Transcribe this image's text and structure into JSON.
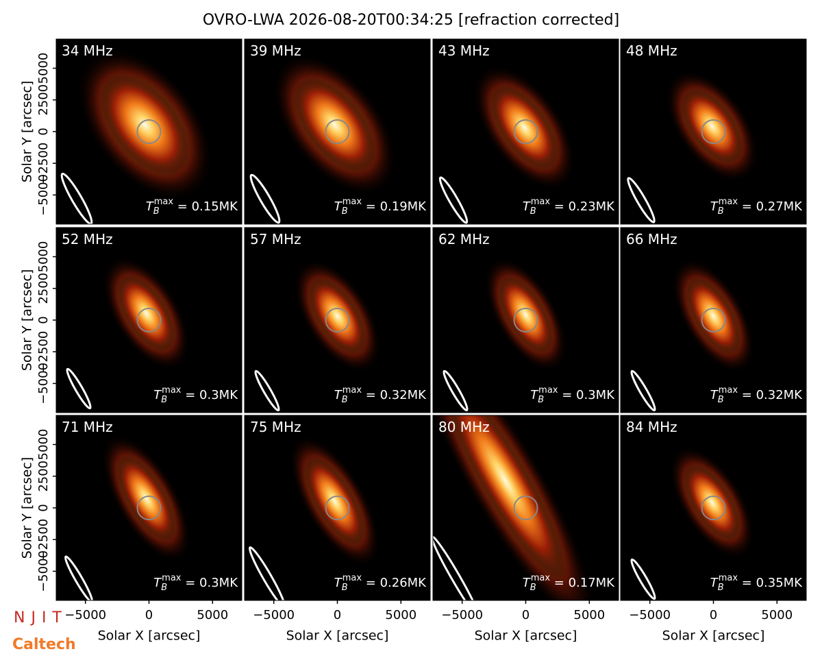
{
  "chart_data": {
    "type": "image-grid",
    "title": "OVRO-LWA 2026-08-20T00:34:25 [refraction corrected]",
    "xlabel": "Solar X [arcsec]",
    "ylabel": "Solar Y [arcsec]",
    "xlim": [
      -7300,
      7300
    ],
    "ylim": [
      -7300,
      7300
    ],
    "xticks": [
      {
        "value": -5000,
        "label": "−5000"
      },
      0,
      5000
    ],
    "yticks": [
      {
        "value": -5000,
        "label": "−5000"
      },
      {
        "value": -2500,
        "label": "−2500"
      },
      0,
      2500,
      5000
    ],
    "tmax_base": "T",
    "tmax_sub": "B",
    "tmax_sup": "max",
    "tmax_eq": " = ",
    "panels": [
      {
        "label": "34 MHz",
        "tmax": "0.15MK"
      },
      {
        "label": "39 MHz",
        "tmax": "0.19MK"
      },
      {
        "label": "43 MHz",
        "tmax": "0.23MK"
      },
      {
        "label": "48 MHz",
        "tmax": "0.27MK"
      },
      {
        "label": "52 MHz",
        "tmax": "0.3MK"
      },
      {
        "label": "57 MHz",
        "tmax": "0.32MK"
      },
      {
        "label": "62 MHz",
        "tmax": "0.3MK"
      },
      {
        "label": "66 MHz",
        "tmax": "0.32MK"
      },
      {
        "label": "71 MHz",
        "tmax": "0.3MK"
      },
      {
        "label": "75 MHz",
        "tmax": "0.26MK"
      },
      {
        "label": "80 MHz",
        "tmax": "0.17MK"
      },
      {
        "label": "84 MHz",
        "tmax": "0.35MK"
      }
    ]
  },
  "logos": {
    "njit": "NJIT",
    "caltech": "Caltech"
  }
}
